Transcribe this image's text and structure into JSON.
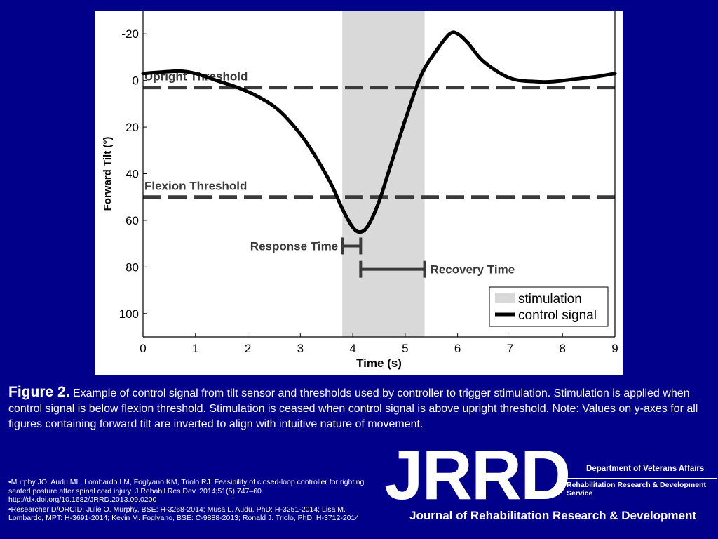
{
  "chart_data": {
    "type": "line",
    "xlabel": "Time (s)",
    "ylabel": "Forward Tilt (°)",
    "xlim": [
      0,
      9
    ],
    "ylim": [
      -30,
      110
    ],
    "y_inverted": true,
    "x_ticks": [
      "0",
      "1",
      "2",
      "3",
      "4",
      "5",
      "6",
      "7",
      "8",
      "9"
    ],
    "y_ticks": [
      "-20",
      "0",
      "20",
      "40",
      "60",
      "80",
      "100"
    ],
    "stimulation_interval": [
      3.8,
      5.37
    ],
    "series": [
      {
        "name": "control signal",
        "x": [
          0,
          0.3,
          0.7,
          1.0,
          1.4,
          1.8,
          2.2,
          2.6,
          3.0,
          3.3,
          3.6,
          3.8,
          4.0,
          4.15,
          4.3,
          4.5,
          4.7,
          5.0,
          5.3,
          5.6,
          5.85,
          6.0,
          6.2,
          6.5,
          7.0,
          7.5,
          7.8,
          8.2,
          8.6,
          9.0
        ],
        "y": [
          -3,
          -3.5,
          -4,
          -3,
          0,
          3,
          7,
          13,
          23,
          33,
          45,
          55,
          63,
          65,
          62,
          52,
          38,
          17,
          -2,
          -13,
          -20,
          -20,
          -16,
          -8,
          -1,
          0.5,
          0.5,
          -0.5,
          -1.5,
          -3
        ]
      }
    ],
    "thresholds": [
      {
        "name": "Upright Threshold",
        "value": 3
      },
      {
        "name": "Flexion Threshold",
        "value": 50
      }
    ],
    "annotations": [
      {
        "label": "Response Time",
        "x_start": 3.8,
        "x_end": 4.15,
        "y": 71
      },
      {
        "label": "Recovery Time",
        "x_start": 4.15,
        "x_end": 5.37,
        "y": 81
      }
    ],
    "legend": {
      "position": "bottom-right",
      "items": [
        {
          "label": "stimulation",
          "kind": "patch"
        },
        {
          "label": "control signal",
          "kind": "line"
        }
      ]
    },
    "grid": false
  },
  "colors": {
    "background": "#00008B",
    "stimulation_fill": "#d9d9d9",
    "curve": "#000000",
    "threshold_dash": "#3a3a3a",
    "annotation": "#3a3a3a"
  },
  "caption": {
    "label": "Figure 2.",
    "text": " Example of control signal from tilt sensor and thresholds used by controller to trigger stimulation. Stimulation is applied when control signal is below flexion threshold. Stimulation is ceased when control signal is above upright threshold. Note: Values on y-axes for all figures containing forward tilt are inverted to align with intuitive nature of movement."
  },
  "references": [
    "•Murphy JO, Audu ML, Lombardo LM, Foglyano KM, Triolo RJ. Feasibility of closed-loop controller for righting seated posture after spinal cord injury. J Rehabil Res Dev. 2014;51(5):747–60. http://dx.doi.org/10.1682/JRRD.2013.09.0200",
    "•ResearcherID/ORCID: Julie O. Murphy, BSE: H-3268-2014; Musa L. Audu, PhD: H-3251-2014; Lisa M. Lombardo, MPT: H-3691-2014; Kevin M. Foglyano, BSE: C-9888-2013; Ronald J. Triolo, PhD: H-3712-2014"
  ],
  "logo": {
    "letters": "JRRD",
    "department": "Department of Veterans Affairs",
    "service": "Rehabilitation Research & Development Service",
    "journal": "Journal of Rehabilitation Research & Development"
  }
}
